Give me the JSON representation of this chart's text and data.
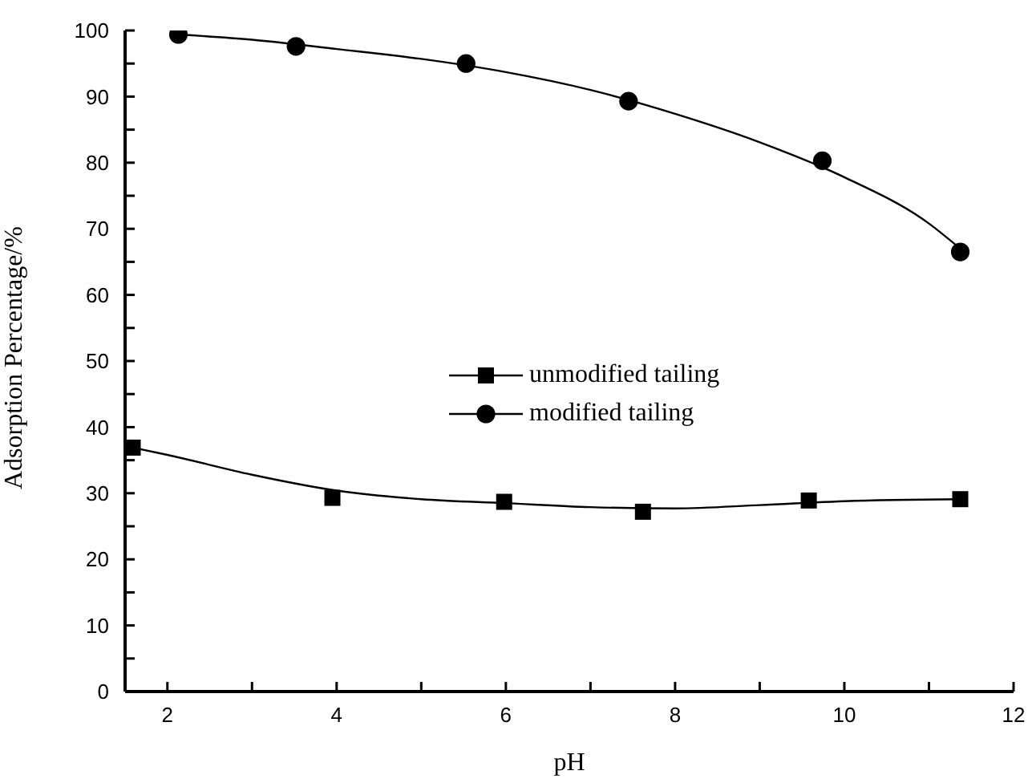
{
  "chart_data": {
    "type": "scatter",
    "xlabel": "pH",
    "ylabel": "Adsorption Percentage/%",
    "xlim": [
      1.5,
      12
    ],
    "ylim": [
      0,
      100
    ],
    "xticks": [
      2,
      {
        "value": 3,
        "label": null
      },
      4,
      {
        "value": 5,
        "label": null
      },
      6,
      {
        "value": 7,
        "label": null
      },
      8,
      {
        "value": 9,
        "label": null
      },
      10,
      {
        "value": 11,
        "label": null
      },
      12
    ],
    "yticks": [
      0,
      {
        "value": 5,
        "label": null
      },
      10,
      {
        "value": 15,
        "label": null
      },
      20,
      {
        "value": 25,
        "label": null
      },
      30,
      {
        "value": 35,
        "label": null
      },
      40,
      {
        "value": 45,
        "label": null
      },
      50,
      {
        "value": 55,
        "label": null
      },
      60,
      {
        "value": 65,
        "label": null
      },
      70,
      {
        "value": 75,
        "label": null
      },
      80,
      {
        "value": 85,
        "label": null
      },
      90,
      {
        "value": 95,
        "label": null
      },
      100
    ],
    "legend": "center",
    "grid": false,
    "series": [
      {
        "name": "unmodified tailing",
        "type": "scatter",
        "marker": "square",
        "color": "#000000",
        "x": [
          1.59,
          3.95,
          5.98,
          7.62,
          9.58,
          11.37
        ],
        "values": [
          36.9,
          29.3,
          28.7,
          27.2,
          28.9,
          29.1
        ]
      },
      {
        "name": "modified tailing",
        "type": "scatter",
        "marker": "circle",
        "color": "#000000",
        "x": [
          2.13,
          3.52,
          5.53,
          7.45,
          9.74,
          11.37
        ],
        "values": [
          99.4,
          97.6,
          95,
          89.3,
          80.3,
          66.5
        ]
      },
      {
        "type": "line",
        "marker": "none",
        "line_style": "solid",
        "color": "#000000",
        "x": [
          1.59,
          2,
          3,
          4,
          5,
          6,
          7,
          8,
          9,
          10,
          11.37
        ],
        "values": [
          36.9,
          35.8,
          32.8,
          30.4,
          29.1,
          28.5,
          27.9,
          27.7,
          28.2,
          28.8,
          29.1
        ]
      },
      {
        "type": "line",
        "marker": "none",
        "line_style": "solid",
        "color": "#000000",
        "x": [
          2.13,
          3,
          4,
          5,
          6,
          7,
          8,
          9,
          10,
          11,
          11.37
        ],
        "values": [
          99.4,
          98.6,
          97.2,
          95.7,
          93.7,
          91,
          87.4,
          83.1,
          77.8,
          70.8,
          67
        ]
      }
    ]
  }
}
